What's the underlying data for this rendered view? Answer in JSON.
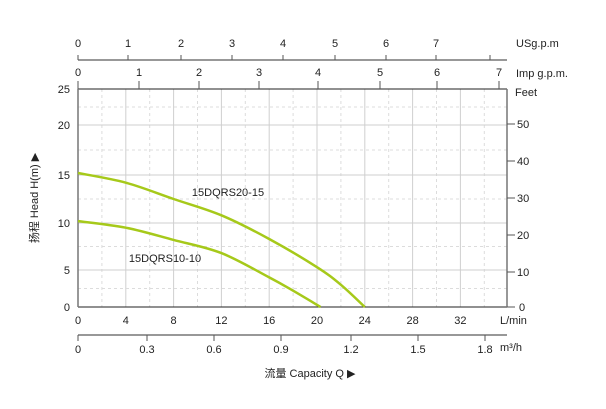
{
  "chart_data": {
    "type": "line",
    "xlabel": "流量 Capacity Q ▶",
    "ylabel": "扬程 Head H(m) ▶",
    "x_unit": "L/min",
    "xlim": [
      0,
      36
    ],
    "ylim": [
      0,
      25
    ],
    "x_ticks": [
      0,
      4,
      8,
      12,
      16,
      20,
      24,
      28,
      32
    ],
    "y_ticks": [
      0,
      5,
      10,
      15,
      20,
      25
    ],
    "grid": true,
    "secondary_axes": {
      "usgpm": {
        "label": "USg.p.m",
        "ticks": [
          "0",
          "1",
          "2",
          "3",
          "4",
          "5",
          "6",
          "7"
        ]
      },
      "impgpm": {
        "label": "Imp g.p.m.",
        "ticks": [
          "0",
          "1",
          "2",
          "3",
          "4",
          "5",
          "6",
          "7"
        ]
      },
      "feet": {
        "label": "Feet",
        "ticks": [
          "0",
          "10",
          "20",
          "30",
          "40",
          "50"
        ]
      },
      "m3h": {
        "label": "m³/h",
        "ticks": [
          "0",
          "0.3",
          "0.6",
          "0.9",
          "1.2",
          "1.5",
          "1.8"
        ]
      }
    },
    "series": [
      {
        "name": "15DQRS20-15",
        "x": [
          0,
          4,
          8,
          12,
          16,
          20,
          22,
          24
        ],
        "y": [
          15.2,
          14.2,
          12.5,
          10.8,
          8.3,
          5.3,
          3.0,
          0
        ]
      },
      {
        "name": "15DQRS10-10",
        "x": [
          0,
          4,
          8,
          12,
          16,
          18,
          20.3
        ],
        "y": [
          10.2,
          9.5,
          8.2,
          6.8,
          4.0,
          2.2,
          0
        ]
      }
    ],
    "line_color": "#a6c91a"
  }
}
